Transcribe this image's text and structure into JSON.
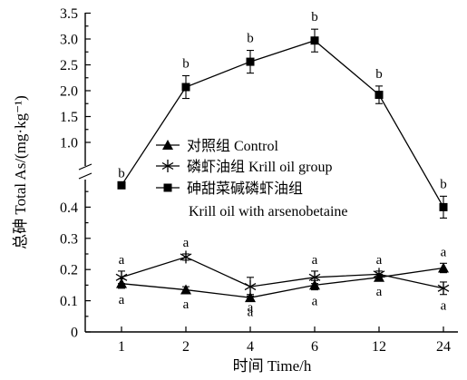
{
  "chart_data": {
    "type": "line",
    "x_axis": {
      "label": "时间 Time/h",
      "categories": [
        "1",
        "2",
        "4",
        "6",
        "12",
        "24"
      ]
    },
    "y_axis": {
      "label": "总砷 Total As/(mg·kg⁻¹)",
      "broken": true,
      "lower_range": [
        0,
        0.47
      ],
      "upper_range": [
        0.75,
        3.5
      ],
      "lower_ticks": [
        "0",
        "0.1",
        "0.2",
        "0.3",
        "0.4"
      ],
      "upper_ticks": [
        "1.0",
        "1.5",
        "2.0",
        "2.5",
        "3.0",
        "3.5"
      ]
    },
    "legend": {
      "placement": "center-right",
      "entries": [
        {
          "name": "对照组 Control",
          "marker": "triangle"
        },
        {
          "name": "磷虾油组 Krill oil group",
          "marker": "asterisk"
        },
        {
          "name": "砷甜菜碱磷虾油组",
          "name2": "Krill oil with arsenobetaine",
          "marker": "square"
        }
      ]
    },
    "series": [
      {
        "name": "对照组 Control",
        "marker": "triangle",
        "values": [
          0.155,
          0.135,
          0.11,
          0.15,
          0.175,
          0.205
        ],
        "errors": [
          0.015,
          0.01,
          0.01,
          0.015,
          0.01,
          0.015
        ],
        "labels": [
          "a",
          "a",
          "a",
          "a",
          "a",
          "a"
        ],
        "label_side": [
          "below",
          "below",
          "below",
          "below",
          "below",
          "above"
        ]
      },
      {
        "name": "磷虾油组 Krill oil group",
        "marker": "asterisk",
        "values": [
          0.175,
          0.24,
          0.145,
          0.175,
          0.185,
          0.14
        ],
        "errors": [
          0.02,
          0.01,
          0.03,
          0.02,
          0.01,
          0.02
        ],
        "labels": [
          "a",
          "a",
          "a",
          "a",
          "a",
          "a"
        ],
        "label_side": [
          "above",
          "above",
          "below",
          "above",
          "above",
          "below"
        ]
      },
      {
        "name": "砷甜菜碱磷虾油组 Krill oil with arsenobetaine",
        "marker": "square",
        "values": [
          0.47,
          2.07,
          2.56,
          2.97,
          1.92,
          0.4
        ],
        "errors": [
          0.0,
          0.22,
          0.22,
          0.22,
          0.17,
          0.035
        ],
        "labels": [
          "b",
          "b",
          "b",
          "b",
          "b",
          "b"
        ],
        "label_side": [
          "above",
          "above",
          "above",
          "above",
          "above",
          "above"
        ]
      }
    ]
  }
}
